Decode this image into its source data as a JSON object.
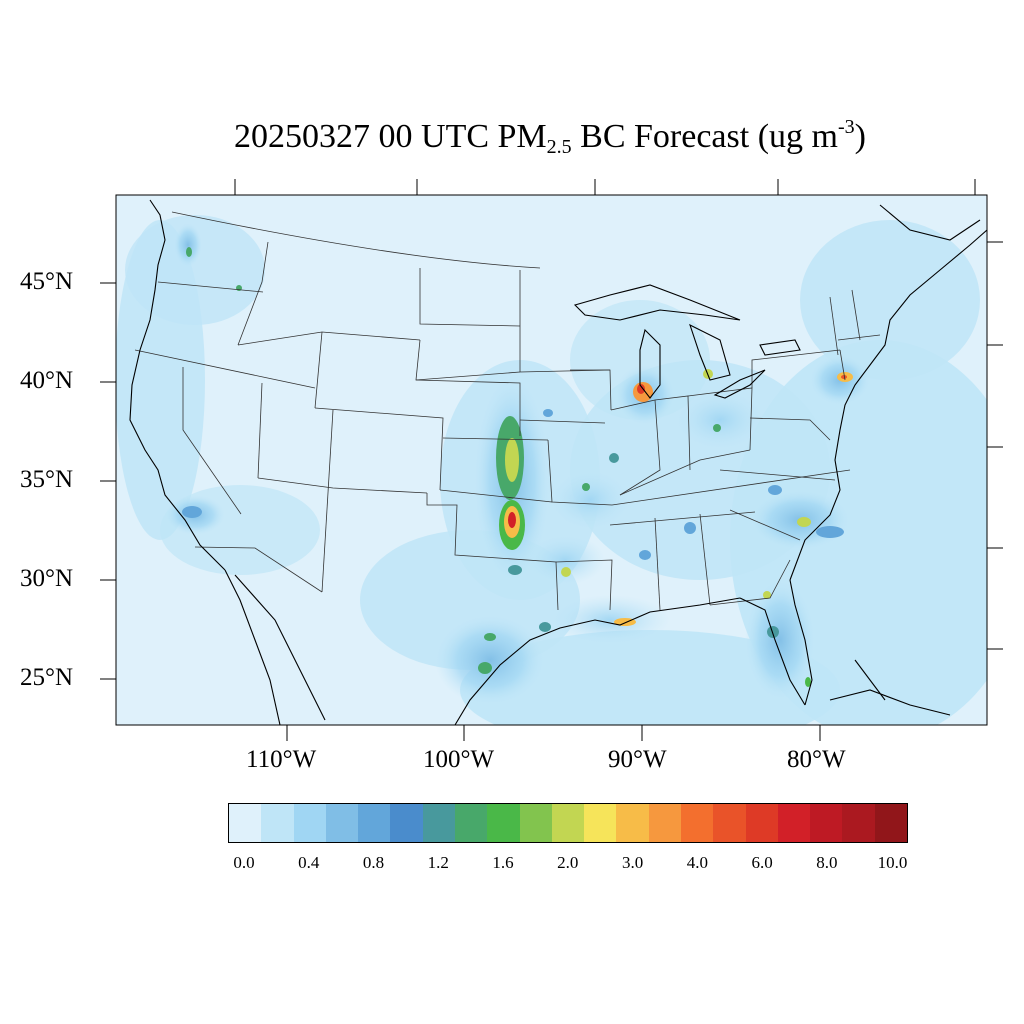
{
  "title": {
    "prefix": "20250327 00 UTC PM",
    "subscript": "2.5",
    "middle": " BC Forecast (ug m",
    "superscript": "-3",
    "suffix": ")"
  },
  "map": {
    "projection": "lambert-conformal",
    "region": "Contiguous United States",
    "lat_labels": [
      "45°N",
      "40°N",
      "35°N",
      "30°N",
      "25°N"
    ],
    "lon_labels": [
      "110°W",
      "100°W",
      "90°W",
      "80°W"
    ],
    "background_color": "#dff1fb",
    "hotspots": [
      {
        "name": "Central Kansas / Flint Hills",
        "level_min": 2.0,
        "level_max": 3.0
      },
      {
        "name": "North-central Oklahoma",
        "level_min": 4.0,
        "level_max": 8.0
      },
      {
        "name": "Chicago, Illinois",
        "level_min": 4.0,
        "level_max": 6.0
      },
      {
        "name": "Southeastern Louisiana",
        "level_min": 3.0,
        "level_max": 4.0
      },
      {
        "name": "New York City area",
        "level_min": 3.0,
        "level_max": 4.0
      },
      {
        "name": "South Carolina coast",
        "level_min": 2.0,
        "level_max": 3.0
      },
      {
        "name": "South Texas",
        "level_min": 1.2,
        "level_max": 2.0
      },
      {
        "name": "Southern California",
        "level_min": 0.8,
        "level_max": 1.2
      }
    ]
  },
  "colorbar": {
    "labels": [
      "0.0",
      "0.4",
      "0.8",
      "1.2",
      "1.6",
      "2.0",
      "3.0",
      "4.0",
      "6.0",
      "8.0",
      "10.0"
    ],
    "colors": [
      "#dff1fb",
      "#bfe5f7",
      "#a0d6f3",
      "#80bee6",
      "#62a6da",
      "#4a8ccc",
      "#48999d",
      "#48a86a",
      "#4ab848",
      "#82c44e",
      "#c2d652",
      "#f6e45a",
      "#f7bc48",
      "#f6983e",
      "#f36f2e",
      "#e95329",
      "#de3a26",
      "#d22028",
      "#be1a24",
      "#ab1920",
      "#91161a"
    ]
  }
}
